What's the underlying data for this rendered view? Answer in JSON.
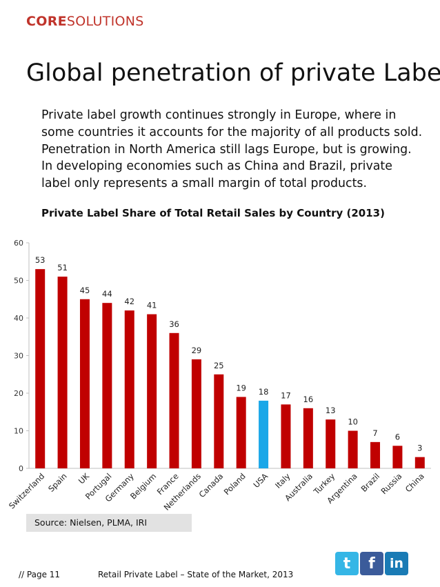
{
  "header": {
    "logo_core": "CORE",
    "logo_solutions": "SOLUTIONS",
    "title": "Global penetration of private Label"
  },
  "intro": "Private label growth continues strongly in Europe, where in some countries it accounts for the majority of all products sold. Penetration in North America still lags Europe, but is growing. In developing economies such as China and Brazil, private label only represents a small margin of total products.",
  "chart_data": {
    "type": "bar",
    "title": "Private Label Share of Total  Retail Sales by Country (2013)",
    "categories": [
      "Switzerland",
      "Spain",
      "UK",
      "Portugal",
      "Germany",
      "Belgium",
      "France",
      "Netherlands",
      "Canada",
      "Poland",
      "USA",
      "Italy",
      "Australia",
      "Turkey",
      "Argentina",
      "Brazil",
      "Russia",
      "China"
    ],
    "values": [
      53,
      51,
      45,
      44,
      42,
      41,
      36,
      29,
      25,
      19,
      18,
      17,
      16,
      13,
      10,
      7,
      6,
      3
    ],
    "highlight": "USA",
    "colors": {
      "bar": "#c00000",
      "highlight": "#1aa7e8",
      "axis": "#bfbfbf"
    },
    "ylim": [
      0,
      60
    ],
    "yticks": [
      0,
      10,
      20,
      30,
      40,
      50,
      60
    ],
    "xlabel": "",
    "ylabel": ""
  },
  "source": "Source: Nielsen, PLMA, IRI",
  "footer": {
    "page": "// Page 11",
    "text": "Retail Private Label – State of the Market, 2013"
  },
  "social": {
    "twitter_glyph": "t",
    "facebook_glyph": "f",
    "linkedin_glyph": "in"
  }
}
